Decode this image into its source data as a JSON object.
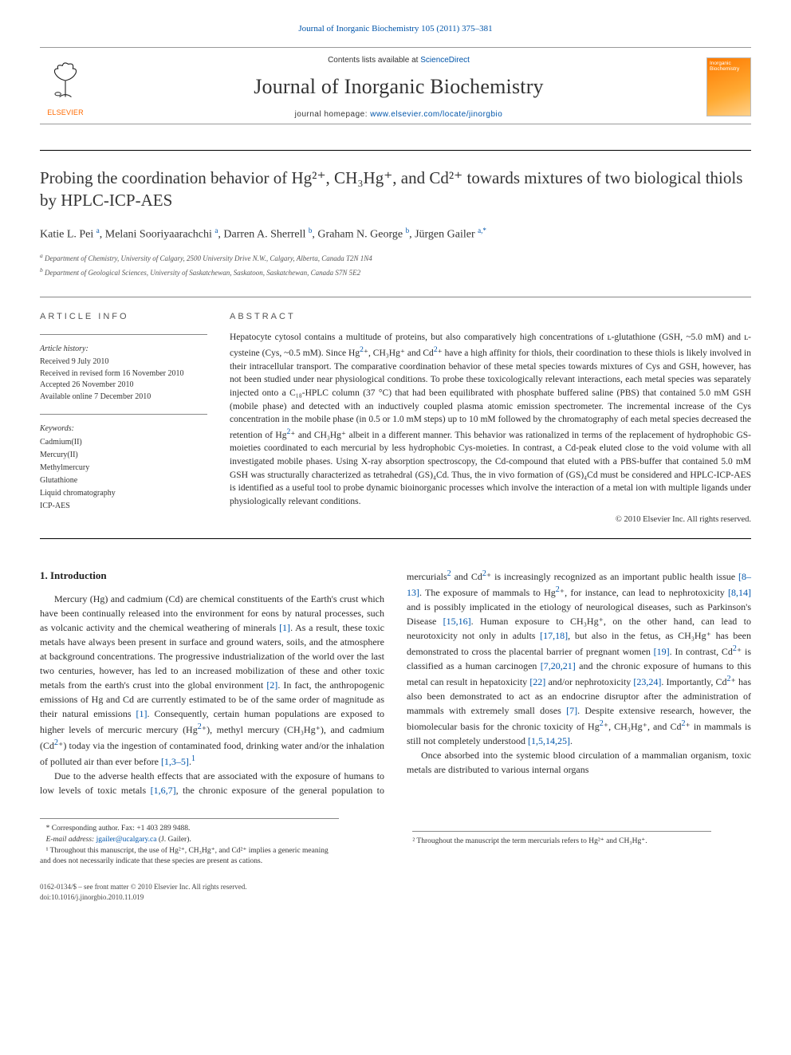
{
  "top_journal_link": "Journal of Inorganic Biochemistry 105 (2011) 375–381",
  "masthead": {
    "contents_line_prefix": "Contents lists available at ",
    "contents_link": "ScienceDirect",
    "journal_name": "Journal of Inorganic Biochemistry",
    "homepage_prefix": "journal homepage: ",
    "homepage_url": "www.elsevier.com/locate/jinorgbio",
    "publisher_logo_text": "ELSEVIER",
    "cover_title": "Inorganic Biochemistry"
  },
  "article": {
    "title_html": "Probing the coordination behavior of Hg²⁺, CH₃Hg⁺, and Cd²⁺ towards mixtures of two biological thiols by HPLC-ICP-AES",
    "authors_line": "Katie L. Pei ᵃ, Melani Sooriyaarachchi ᵃ, Darren A. Sherrell ᵇ, Graham N. George ᵇ, Jürgen Gailer ᵃ,*",
    "affiliations": {
      "a": "Department of Chemistry, University of Calgary, 2500 University Drive N.W., Calgary, Alberta, Canada T2N 1N4",
      "b": "Department of Geological Sciences, University of Saskatchewan, Saskatoon, Saskatchewan, Canada S7N 5E2"
    }
  },
  "article_info": {
    "heading": "ARTICLE INFO",
    "history_heading": "Article history:",
    "received": "Received 9 July 2010",
    "revised": "Received in revised form 16 November 2010",
    "accepted": "Accepted 26 November 2010",
    "online": "Available online 7 December 2010",
    "keywords_heading": "Keywords:",
    "keywords": [
      "Cadmium(II)",
      "Mercury(II)",
      "Methylmercury",
      "Glutathione",
      "Liquid chromatography",
      "ICP-AES"
    ]
  },
  "abstract": {
    "heading": "ABSTRACT",
    "body": "Hepatocyte cytosol contains a multitude of proteins, but also comparatively high concentrations of ʟ-glutathione (GSH, ~5.0 mM) and ʟ-cysteine (Cys, ~0.5 mM). Since Hg²⁺, CH₃Hg⁺ and Cd²⁺ have a high affinity for thiols, their coordination to these thiols is likely involved in their intracellular transport. The comparative coordination behavior of these metal species towards mixtures of Cys and GSH, however, has not been studied under near physiological conditions. To probe these toxicologically relevant interactions, each metal species was separately injected onto a C₁₈-HPLC column (37 °C) that had been equilibrated with phosphate buffered saline (PBS) that contained 5.0 mM GSH (mobile phase) and detected with an inductively coupled plasma atomic emission spectrometer. The incremental increase of the Cys concentration in the mobile phase (in 0.5 or 1.0 mM steps) up to 10 mM followed by the chromatography of each metal species decreased the retention of Hg²⁺ and CH₃Hg⁺ albeit in a different manner. This behavior was rationalized in terms of the replacement of hydrophobic GS-moieties coordinated to each mercurial by less hydrophobic Cys-moieties. In contrast, a Cd-peak eluted close to the void volume with all investigated mobile phases. Using X-ray absorption spectroscopy, the Cd-compound that eluted with a PBS-buffer that contained 5.0 mM GSH was structurally characterized as tetrahedral (GS)₄Cd. Thus, the in vivo formation of (GS)₄Cd must be considered and HPLC-ICP-AES is identified as a useful tool to probe dynamic bioinorganic processes which involve the interaction of a metal ion with multiple ligands under physiologically relevant conditions.",
    "copyright": "© 2010 Elsevier Inc. All rights reserved."
  },
  "sections": {
    "intro_heading": "1. Introduction",
    "intro_p1": "Mercury (Hg) and cadmium (Cd) are chemical constituents of the Earth's crust which have been continually released into the environment for eons by natural processes, such as volcanic activity and the chemical weathering of minerals [1]. As a result, these toxic metals have always been present in surface and ground waters, soils, and the atmosphere at background concentrations. The progressive industrialization of the world over the last two centuries, however, has led to an increased mobilization of these and other toxic metals from the earth's crust into the global environment [2]. In fact, the anthropogenic emissions of Hg and Cd are currently estimated to be of the same order of magnitude as their natural emissions [1]. Consequently, certain human populations are exposed to higher levels of mercuric mercury (Hg²⁺), methyl mercury (CH₃Hg⁺), and cadmium (Cd²⁺) today via the ingestion of contaminated food, drinking water and/or the inhalation of polluted air than ever before [1,3–5].¹",
    "intro_p2": "Due to the adverse health effects that are associated with the exposure of humans to low levels of toxic metals [1,6,7], the chronic exposure of the general population to mercurials² and Cd²⁺ is increasingly recognized as an important public health issue [8–13]. The exposure of mammals to Hg²⁺, for instance, can lead to nephrotoxicity [8,14] and is possibly implicated in the etiology of neurological diseases, such as Parkinson's Disease [15,16]. Human exposure to CH₃Hg⁺, on the other hand, can lead to neurotoxicity not only in adults [17,18], but also in the fetus, as CH₃Hg⁺ has been demonstrated to cross the placental barrier of pregnant women [19]. In contrast, Cd²⁺ is classified as a human carcinogen [7,20,21] and the chronic exposure of humans to this metal can result in hepatoxicity [22] and/or nephrotoxicity [23,24]. Importantly, Cd²⁺ has also been demonstrated to act as an endocrine disruptor after the administration of mammals with extremely small doses [7]. Despite extensive research, however, the biomolecular basis for the chronic toxicity of Hg²⁺, CH₃Hg⁺, and Cd²⁺ in mammals is still not completely understood [1,5,14,25].",
    "intro_p3": "Once absorbed into the systemic blood circulation of a mammalian organism, toxic metals are distributed to various internal organs"
  },
  "footnotes": {
    "corr": "* Corresponding author. Fax: +1 403 289 9488.",
    "email_label": "E-mail address:",
    "email": "jgailer@ucalgary.ca",
    "email_suffix": "(J. Gailer).",
    "fn1": "¹ Throughout this manuscript, the use of Hg²⁺, CH₃Hg⁺, and Cd²⁺ implies a generic meaning and does not necessarily indicate that these species are present as cations.",
    "fn2": "² Throughout the manuscript the term mercurials refers to Hg²⁺ and CH₃Hg⁺."
  },
  "bottom": {
    "issn_line": "0162-0134/$ – see front matter © 2010 Elsevier Inc. All rights reserved.",
    "doi_line": "doi:10.1016/j.jinorgbio.2010.11.019"
  },
  "colors": {
    "link": "#0055aa",
    "elsevier_orange": "#ff6a00",
    "text": "#2a2a2a",
    "rule": "#888888"
  }
}
